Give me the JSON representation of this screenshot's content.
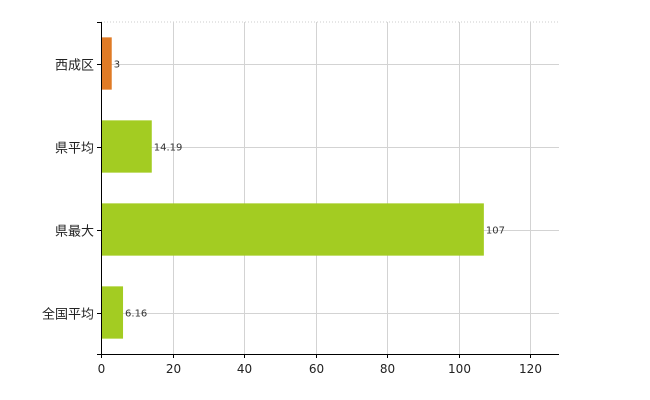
{
  "chart_data": {
    "type": "bar",
    "orientation": "horizontal",
    "title": "",
    "xlabel": "",
    "ylabel": "",
    "categories": [
      "西成区",
      "県平均",
      "県最大",
      "全国平均"
    ],
    "values": [
      3,
      14.19,
      107,
      6.16
    ],
    "value_labels": [
      "3",
      "14.19",
      "107",
      "6.16"
    ],
    "bar_colors": [
      "#e07b26",
      "#a3cc22",
      "#a3cc22",
      "#a3cc22"
    ],
    "xlim": [
      0,
      128
    ],
    "xticks": [
      0,
      20,
      40,
      60,
      80,
      100,
      120
    ],
    "xtick_labels": [
      "0",
      "20",
      "40",
      "60",
      "80",
      "100",
      "120"
    ],
    "grid": true,
    "legend": "none"
  }
}
